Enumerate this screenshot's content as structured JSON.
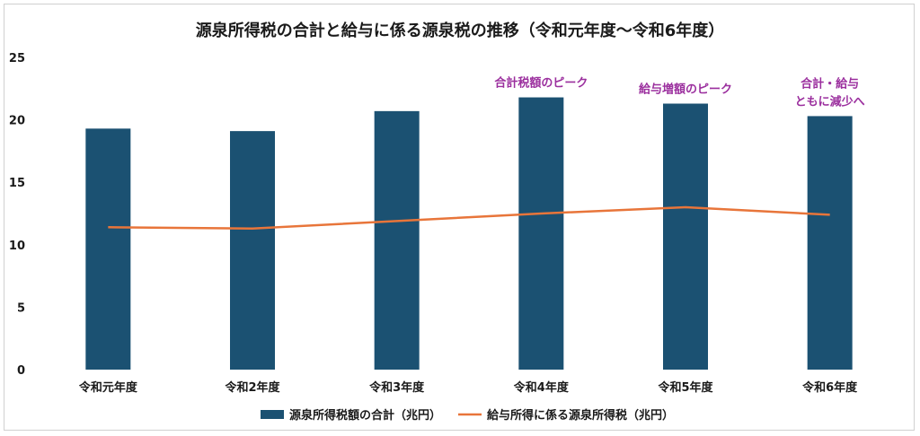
{
  "chart_data": {
    "type": "bar",
    "title": "源泉所得税の合計と給与に係る源泉税の推移（令和元年度〜令和6年度）",
    "categories": [
      "令和元年度",
      "令和2年度",
      "令和3年度",
      "令和4年度",
      "令和5年度",
      "令和6年度"
    ],
    "series": [
      {
        "name": "源泉所得税額の合計（兆円）",
        "type": "bar",
        "color": "#1b5172",
        "values": [
          19.3,
          19.1,
          20.7,
          21.8,
          21.3,
          20.3
        ]
      },
      {
        "name": "給与所得に係る源泉所得税（兆円）",
        "type": "line",
        "color": "#e8753a",
        "values": [
          11.4,
          11.3,
          11.9,
          12.5,
          13.0,
          12.4
        ]
      }
    ],
    "ylim": [
      0,
      25
    ],
    "yticks": [
      0,
      5,
      10,
      15,
      20,
      25
    ],
    "grid": false,
    "legend": "bottom",
    "annotations": [
      {
        "category": "令和4年度",
        "lines": [
          "合計税額のピーク"
        ]
      },
      {
        "category": "令和5年度",
        "lines": [
          "給与増額のピーク"
        ]
      },
      {
        "category": "令和6年度",
        "lines": [
          "合計・給与",
          "ともに減少へ"
        ]
      }
    ],
    "annotation_color": "#9b2f9e"
  }
}
